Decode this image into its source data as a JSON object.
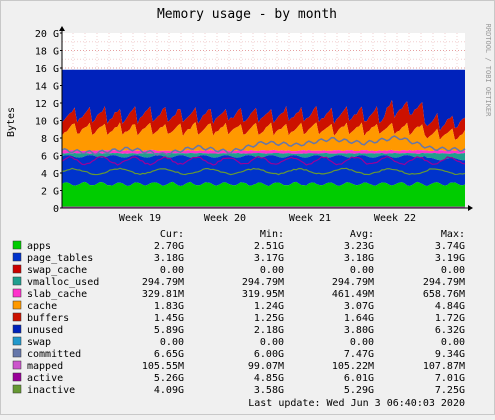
{
  "chart_data": {
    "type": "area",
    "title": "Memory usage - by month",
    "ylabel": "Bytes",
    "side_label": "RRDTOOL / TOBI OETIKER",
    "ylim": [
      0,
      20
    ],
    "y_unit": "G",
    "y_ticks": [
      "0",
      "2 G",
      "4 G",
      "6 G",
      "8 G",
      "10 G",
      "12 G",
      "14 G",
      "16 G",
      "18 G",
      "20 G"
    ],
    "x_ticks": [
      "Week 19",
      "Week 20",
      "Week 21",
      "Week 22"
    ],
    "grid": true,
    "stack_levels_gb": {
      "apps": 2.7,
      "page_tables": 5.9,
      "vmalloc_used": 6.2,
      "slab_cache": 6.5,
      "cache": 8.2,
      "buffers": 9.6,
      "total": 15.8
    },
    "committed_gb": [
      6.6,
      6.3,
      6.8,
      6.1,
      7.0,
      6.4,
      7.5,
      7.2,
      7.9,
      7.4,
      8.1,
      6.8,
      6.65
    ],
    "mapped_gb": 0.1,
    "legend_header": {
      "cur": "Cur:",
      "min": "Min:",
      "avg": "Avg:",
      "max": "Max:"
    },
    "series": [
      {
        "name": "apps",
        "color": "#00cc00",
        "cur": "2.70G",
        "min": "2.51G",
        "avg": "3.23G",
        "max": "3.74G"
      },
      {
        "name": "page_tables",
        "color": "#0033cc",
        "cur": "3.18G",
        "min": "3.17G",
        "avg": "3.18G",
        "max": "3.19G"
      },
      {
        "name": "swap_cache",
        "color": "#cc0000",
        "cur": "0.00",
        "min": "0.00",
        "avg": "0.00",
        "max": "0.00"
      },
      {
        "name": "vmalloc_used",
        "color": "#1f9f8f",
        "cur": "294.79M",
        "min": "294.79M",
        "avg": "294.79M",
        "max": "294.79M"
      },
      {
        "name": "slab_cache",
        "color": "#ff33cc",
        "cur": "329.81M",
        "min": "319.95M",
        "avg": "461.49M",
        "max": "658.76M"
      },
      {
        "name": "cache",
        "color": "#ff9900",
        "cur": "1.83G",
        "min": "1.24G",
        "avg": "3.07G",
        "max": "4.84G"
      },
      {
        "name": "buffers",
        "color": "#cc1100",
        "cur": "1.45G",
        "min": "1.25G",
        "avg": "1.64G",
        "max": "1.72G"
      },
      {
        "name": "unused",
        "color": "#0022bb",
        "cur": "5.89G",
        "min": "2.18G",
        "avg": "3.80G",
        "max": "6.32G"
      },
      {
        "name": "swap",
        "color": "#2299cc",
        "cur": "0.00",
        "min": "0.00",
        "avg": "0.00",
        "max": "0.00"
      },
      {
        "name": "committed",
        "color": "#6677aa",
        "cur": "6.65G",
        "min": "6.00G",
        "avg": "7.47G",
        "max": "9.34G"
      },
      {
        "name": "mapped",
        "color": "#cc55cc",
        "cur": "105.55M",
        "min": "99.07M",
        "avg": "105.22M",
        "max": "107.87M"
      },
      {
        "name": "active",
        "color": "#990099",
        "cur": "5.26G",
        "min": "4.85G",
        "avg": "6.01G",
        "max": "7.01G"
      },
      {
        "name": "inactive",
        "color": "#669933",
        "cur": "4.09G",
        "min": "3.58G",
        "avg": "5.29G",
        "max": "7.25G"
      }
    ],
    "last_update": "Last update: Wed Jun  3 06:40:03 2020"
  }
}
